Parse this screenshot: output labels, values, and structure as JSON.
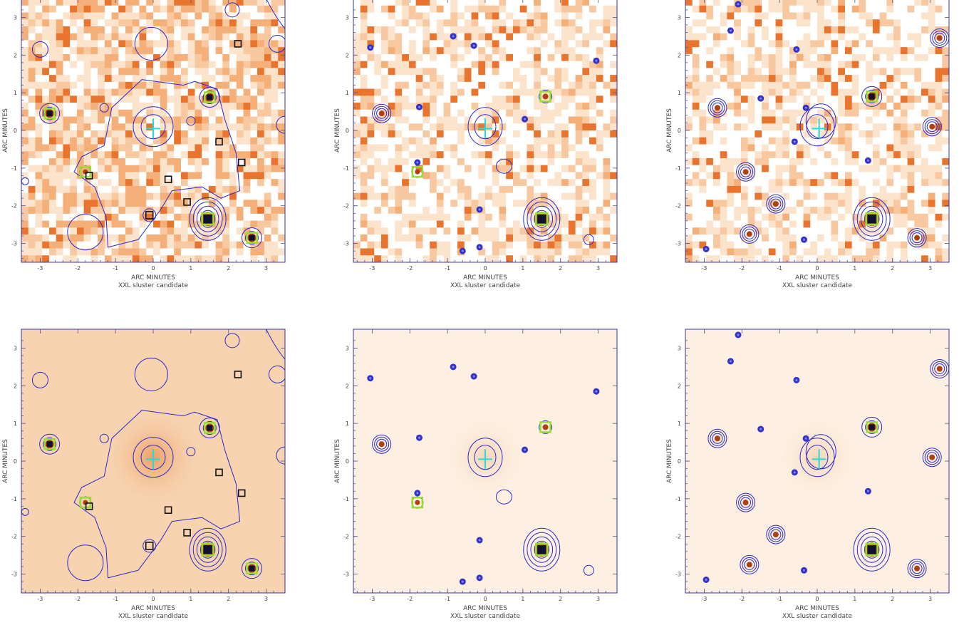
{
  "figure": {
    "panels": [
      {
        "id": "top-left",
        "row": 0,
        "col": 0,
        "style": "noisy",
        "contours": "wide",
        "xlabel": "ARC  MINUTES",
        "caption": "XXL sluster candidate",
        "ylabel": "ARC  MINUTES"
      },
      {
        "id": "top-middle",
        "row": 0,
        "col": 1,
        "style": "noisy",
        "contours": "point",
        "xlabel": "ARC  MINUTES",
        "caption": "XXL sluster candidate",
        "ylabel": "ARC  MINUTES"
      },
      {
        "id": "top-right",
        "row": 0,
        "col": 2,
        "style": "noisy",
        "contours": "point2",
        "xlabel": "ARC  MINUTES",
        "caption": "XXL sluster candidate",
        "ylabel": "ARC  MINUTES"
      },
      {
        "id": "bottom-left",
        "row": 1,
        "col": 0,
        "style": "smooth",
        "contours": "wide",
        "xlabel": "ARC  MINUTES",
        "caption": "XXL sluster candidate",
        "ylabel": "ARC  MINUTES"
      },
      {
        "id": "bottom-middle",
        "row": 1,
        "col": 1,
        "style": "smooth",
        "contours": "point",
        "xlabel": "ARC  MINUTES",
        "caption": "XXL sluster candidate",
        "ylabel": "ARC  MINUTES"
      },
      {
        "id": "bottom-right",
        "row": 1,
        "col": 2,
        "style": "smooth",
        "contours": "point2",
        "xlabel": "ARC  MINUTES",
        "caption": "XXL sluster candidate",
        "ylabel": "ARC  MINUTES"
      }
    ],
    "axis": {
      "xlim": [
        -3.5,
        3.5
      ],
      "ylim": [
        -3.5,
        3.5
      ],
      "xticks": [
        "-3",
        "-2",
        "-1",
        "0",
        "1",
        "2",
        "3"
      ],
      "yticks": [
        "-3",
        "-2",
        "-1",
        "0",
        "1",
        "2",
        "3"
      ]
    },
    "colors": {
      "noise_light": "#fbe3cc",
      "noise_mid": "#f5b07a",
      "noise_dark": "#e8742e",
      "smooth_bg": "#fbe6d0",
      "contour": "#2a2acc",
      "green_box": "#99dd33",
      "black_box": "#111111",
      "cross": "#22dddd"
    }
  }
}
